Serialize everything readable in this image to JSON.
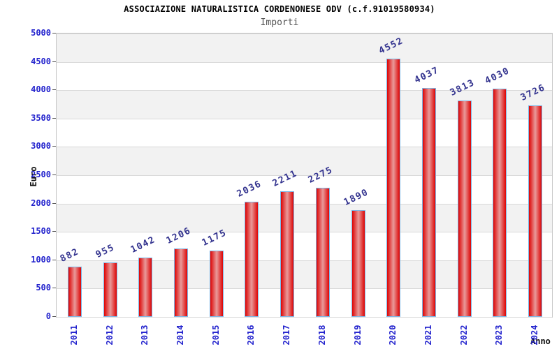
{
  "chart_data": {
    "type": "bar",
    "title": "ASSOCIAZIONE NATURALISTICA CORDENONESE ODV (c.f.91019580934)",
    "subtitle": "Importi",
    "xlabel": "Anno",
    "ylabel": "Euro",
    "categories": [
      "2011",
      "2012",
      "2013",
      "2014",
      "2015",
      "2016",
      "2017",
      "2018",
      "2019",
      "2020",
      "2021",
      "2022",
      "2023",
      "2024"
    ],
    "values": [
      882,
      955,
      1042,
      1206,
      1175,
      2036,
      2211,
      2275,
      1890,
      4552,
      4037,
      3813,
      4030,
      3726
    ],
    "yticks": [
      0,
      500,
      1000,
      1500,
      2000,
      2500,
      3000,
      3500,
      4000,
      4500,
      5000
    ],
    "ylim": [
      0,
      5000
    ],
    "grid": true,
    "alternating_bands": true,
    "legend": "none",
    "data_labels": true
  },
  "colors": {
    "axis_blue": "#2323cd",
    "value_navy": "#32328e",
    "bar_red": "#dd0404",
    "bar_light": "#e99a9a",
    "bar_border": "#7cb8e8",
    "band_gray": "#f2f2f2",
    "grid": "#d9d9d9",
    "plot_border": "#c6c6c6",
    "tick_mark": "#555555",
    "title": "#000000",
    "subtitle": "#555555",
    "axis_title": "#111111"
  }
}
